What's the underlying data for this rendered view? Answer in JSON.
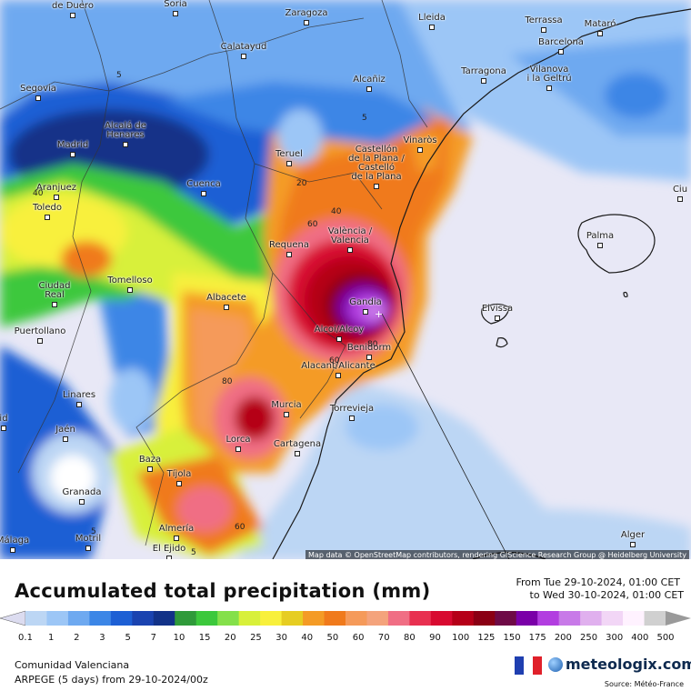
{
  "colors": {
    "sea": "#e8e8f6",
    "scale": [
      "#dcdcf0",
      "#bcd6f4",
      "#9cc6f6",
      "#6ea9f0",
      "#3c86e6",
      "#1d5fd4",
      "#1a43b0",
      "#123288",
      "#2f9a3a",
      "#3cc83c",
      "#84e04a",
      "#d8f03a",
      "#f8f03c",
      "#e6cd22",
      "#f49b26",
      "#f07a1c",
      "#f59a5a",
      "#f4a37c",
      "#f06e84",
      "#e83050",
      "#d80a30",
      "#b50018",
      "#8a0014",
      "#6e0a46",
      "#7a00a8",
      "#b23ee0",
      "#c87ae8",
      "#e0b0ee",
      "#f2d6f6",
      "#fff2ff",
      "#d0d0d0",
      "#9a9a9a"
    ]
  },
  "map": {
    "attribution": "Map data © OpenStreetMap contributors, rendering GIScience Research Group @ Heidelberg University",
    "cities": [
      {
        "name": "Aranda\nde Duero"
      },
      {
        "name": "Soria"
      },
      {
        "name": "Zaragoza"
      },
      {
        "name": "Lleida"
      },
      {
        "name": "Terrassa"
      },
      {
        "name": "Mataró"
      },
      {
        "name": "Barcelona"
      },
      {
        "name": "Calatayud"
      },
      {
        "name": "Segovia"
      },
      {
        "name": "Alcañiz"
      },
      {
        "name": "Tarragona"
      },
      {
        "name": "Vilanova\ni la Geltrú"
      },
      {
        "name": "Madrid"
      },
      {
        "name": "Alcalá de\nHenares"
      },
      {
        "name": "Teruel"
      },
      {
        "name": "Vinaròs"
      },
      {
        "name": "Castellón\nde la Plana /\nCastelló\nde la Plana"
      },
      {
        "name": "Aranjuez"
      },
      {
        "name": "Cuenca"
      },
      {
        "name": "Toledo"
      },
      {
        "name": "Requena"
      },
      {
        "name": "València /\nValencia"
      },
      {
        "name": "Palma"
      },
      {
        "name": "Ciudad\nReal"
      },
      {
        "name": "Tomelloso"
      },
      {
        "name": "Albacete"
      },
      {
        "name": "Gandia"
      },
      {
        "name": "Eivissa"
      },
      {
        "name": "Puertollano"
      },
      {
        "name": "Alcoi/Alcoy"
      },
      {
        "name": "Benidorm"
      },
      {
        "name": "Alacant/Alicante"
      },
      {
        "name": "Linares"
      },
      {
        "name": "Murcia"
      },
      {
        "name": "Torrevieja"
      },
      {
        "name": "Jaén"
      },
      {
        "name": "Lorca"
      },
      {
        "name": "Cartagena"
      },
      {
        "name": "Baza"
      },
      {
        "name": "Tíjola"
      },
      {
        "name": "Granada"
      },
      {
        "name": "Almería"
      },
      {
        "name": "Motril"
      },
      {
        "name": "Málaga"
      },
      {
        "name": "El Ejido"
      },
      {
        "name": "Alger"
      },
      {
        "name": "Ciu"
      },
      {
        "name": "id"
      }
    ],
    "contour_labels": [
      "5",
      "5",
      "5",
      "5",
      "20",
      "40",
      "40",
      "60",
      "60",
      "80",
      "60",
      "80"
    ]
  },
  "legend": {
    "title": "Accumulated total precipitation (mm)",
    "period_from": "From Tue 29-10-2024, 01:00 CET",
    "period_to": "to Wed 30-10-2024, 01:00 CET",
    "ticks": [
      "0.1",
      "1",
      "2",
      "3",
      "5",
      "7",
      "10",
      "15",
      "20",
      "25",
      "30",
      "40",
      "50",
      "60",
      "70",
      "80",
      "90",
      "100",
      "125",
      "150",
      "175",
      "200",
      "250",
      "300",
      "400",
      "500"
    ]
  },
  "footer": {
    "region": "Comunidad Valenciana",
    "model": "ARPEGE (5 days) from 29-10-2024/00z",
    "brand": "meteologix.com",
    "source": "Source: Météo-France"
  }
}
